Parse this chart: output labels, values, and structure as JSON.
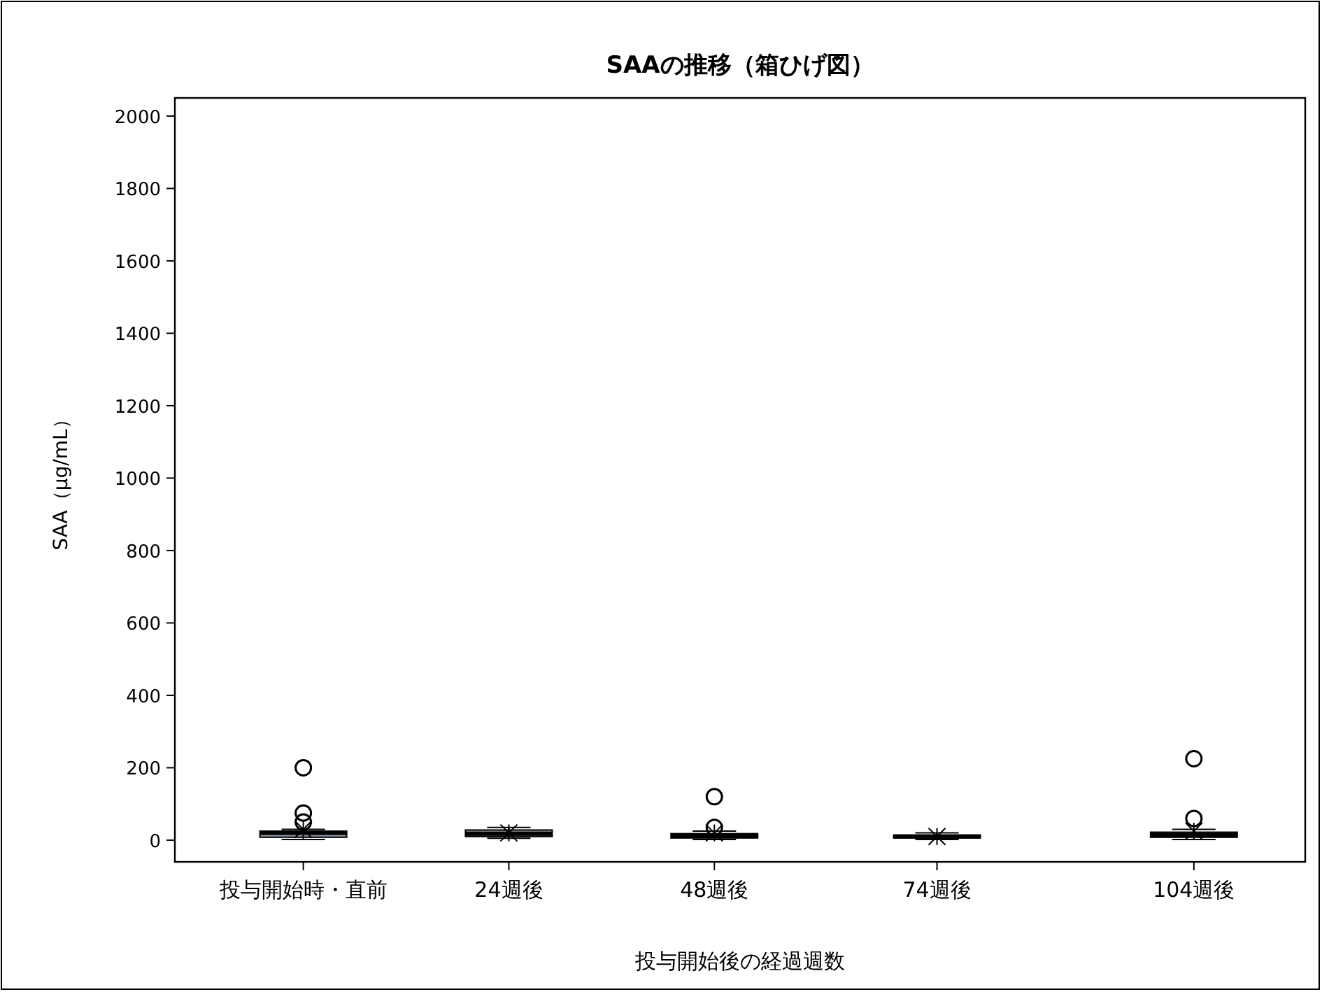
{
  "chart_data": {
    "type": "box",
    "title": "SAAの推移（箱ひげ図）",
    "xlabel": "投与開始後の経過週数",
    "ylabel": "SAA（μg/mL）",
    "x": [
      0,
      24,
      48,
      74,
      104
    ],
    "boxes": [
      {
        "low": 2,
        "q1": 8,
        "median": 20,
        "q3": 25,
        "high": 30,
        "mean": 30,
        "outliers": [
          200,
          75,
          50
        ]
      },
      {
        "low": 5,
        "q1": 10,
        "median": 18,
        "q3": 28,
        "high": 35,
        "mean": 20
      },
      {
        "low": 2,
        "q1": 6,
        "median": 12,
        "q3": 18,
        "high": 25,
        "mean": 20,
        "outliers": [
          120,
          35
        ]
      },
      {
        "low": 2,
        "q1": 6,
        "median": 10,
        "q3": 14,
        "high": 20,
        "mean": 10
      },
      {
        "low": 2,
        "q1": 8,
        "median": 15,
        "q3": 22,
        "high": 30,
        "mean": 25,
        "outliers": [
          225,
          60
        ]
      }
    ],
    "color": "#8c96a0",
    "xlim": [
      -15,
      117
    ],
    "xticks": [
      {
        "value": 0,
        "label": "投与開始時・直前"
      },
      {
        "value": 24,
        "label": "24週後"
      },
      {
        "value": 48,
        "label": "48週後"
      },
      {
        "value": 74,
        "label": "74週後"
      },
      {
        "value": 104,
        "label": "104週後"
      }
    ],
    "ylim": [
      -60,
      2050
    ],
    "yticks": [
      0,
      200,
      400,
      600,
      800,
      1000,
      1200,
      1400,
      1600,
      1800,
      2000
    ],
    "grid": false
  }
}
